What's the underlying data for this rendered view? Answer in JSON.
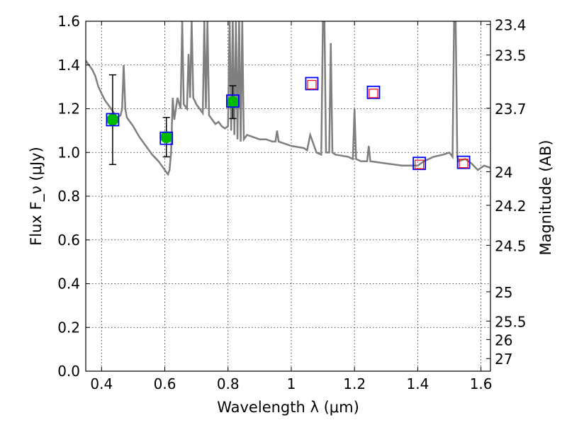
{
  "chart_data": {
    "type": "scatter",
    "xlabel": "Wavelength λ (μm)",
    "ylabel": "Flux F_ν (μJy)",
    "y2label": "Magnitude (AB)",
    "xlim": [
      0.35,
      1.63
    ],
    "ylim": [
      0.0,
      1.6
    ],
    "grid": true,
    "x_ticks": [
      0.4,
      0.6,
      0.8,
      1.0,
      1.2,
      1.4,
      1.6
    ],
    "x_tick_labels": [
      "0.4",
      "0.6",
      "0.8",
      "1",
      "1.2",
      "1.4",
      "1.6"
    ],
    "y_ticks": [
      0.0,
      0.2,
      0.4,
      0.6,
      0.8,
      1.0,
      1.2,
      1.4,
      1.6
    ],
    "y_tick_labels": [
      "0.0",
      "0.2",
      "0.4",
      "0.6",
      "0.8",
      "1.0",
      "1.2",
      "1.4",
      "1.6"
    ],
    "y2_ticks": [
      {
        "label": "23.4",
        "mag": 23.4
      },
      {
        "label": "23.5",
        "mag": 23.5
      },
      {
        "label": "23.7",
        "mag": 23.7
      },
      {
        "label": "24",
        "mag": 24.0
      },
      {
        "label": "24.2",
        "mag": 24.2
      },
      {
        "label": "24.5",
        "mag": 24.5
      },
      {
        "label": "25",
        "mag": 25.0
      },
      {
        "label": "25.5",
        "mag": 25.5
      },
      {
        "label": "26",
        "mag": 26.0
      },
      {
        "label": "27",
        "mag": 27.0
      }
    ],
    "series": [
      {
        "type": "line",
        "color": "#7f7f7f",
        "x": [
          0.35,
          0.36,
          0.37,
          0.38,
          0.39,
          0.4,
          0.41,
          0.42,
          0.43,
          0.44,
          0.45,
          0.46,
          0.465,
          0.47,
          0.475,
          0.48,
          0.5,
          0.52,
          0.54,
          0.56,
          0.58,
          0.59,
          0.6,
          0.61,
          0.615,
          0.62,
          0.625,
          0.63,
          0.64,
          0.65,
          0.655,
          0.66,
          0.67,
          0.675,
          0.68,
          0.685,
          0.69,
          0.7,
          0.71,
          0.72,
          0.725,
          0.73,
          0.735,
          0.74,
          0.75,
          0.76,
          0.77,
          0.78,
          0.79,
          0.8,
          0.805,
          0.81,
          0.815,
          0.82,
          0.825,
          0.83,
          0.835,
          0.84,
          0.845,
          0.85,
          0.86,
          0.88,
          0.9,
          0.92,
          0.94,
          0.95,
          0.955,
          0.96,
          0.98,
          1.0,
          1.04,
          1.05,
          1.06,
          1.08,
          1.095,
          1.1,
          1.105,
          1.11,
          1.12,
          1.125,
          1.13,
          1.14,
          1.18,
          1.195,
          1.2,
          1.205,
          1.22,
          1.24,
          1.245,
          1.25,
          1.3,
          1.35,
          1.4,
          1.42,
          1.45,
          1.48,
          1.5,
          1.51,
          1.515,
          1.52,
          1.525,
          1.53,
          1.55,
          1.57,
          1.59,
          1.61,
          1.63
        ],
        "y": [
          1.42,
          1.4,
          1.38,
          1.35,
          1.3,
          1.27,
          1.24,
          1.22,
          1.2,
          1.18,
          1.16,
          1.17,
          1.2,
          1.4,
          1.2,
          1.16,
          1.12,
          1.07,
          1.03,
          0.99,
          0.96,
          0.94,
          0.92,
          0.9,
          0.92,
          1.0,
          1.25,
          1.15,
          1.25,
          1.2,
          1.6,
          1.22,
          1.2,
          1.45,
          1.25,
          1.6,
          1.25,
          1.22,
          1.2,
          1.18,
          1.6,
          1.2,
          1.6,
          1.17,
          1.15,
          1.13,
          1.14,
          1.12,
          1.11,
          1.12,
          1.6,
          1.1,
          1.6,
          1.08,
          1.6,
          1.06,
          1.6,
          1.05,
          1.6,
          1.06,
          1.08,
          1.07,
          1.06,
          1.06,
          1.05,
          1.05,
          1.1,
          1.05,
          1.04,
          1.03,
          1.02,
          1.01,
          1.08,
          1.0,
          0.99,
          1.6,
          1.6,
          1.0,
          1.0,
          1.5,
          1.0,
          0.99,
          0.98,
          0.97,
          1.2,
          0.97,
          0.96,
          0.96,
          1.03,
          0.96,
          0.95,
          0.94,
          0.94,
          0.96,
          0.98,
          0.99,
          1.0,
          0.98,
          1.6,
          1.6,
          0.98,
          0.96,
          0.97,
          0.95,
          0.92,
          0.94,
          0.93
        ]
      },
      {
        "type": "errorbar-points",
        "marker": "green-circle",
        "color": "#00bb00",
        "x": [
          0.435,
          0.605,
          0.815
        ],
        "y": [
          1.15,
          1.07,
          1.23
        ],
        "yerr": [
          0.205,
          0.09,
          0.075
        ]
      },
      {
        "type": "points",
        "marker": "blue-square",
        "color": "#0000ff",
        "x": [
          0.435,
          0.605,
          0.815,
          1.065,
          1.26,
          1.405,
          1.545
        ],
        "y": [
          1.15,
          1.065,
          1.235,
          1.315,
          1.275,
          0.95,
          0.955
        ]
      },
      {
        "type": "points",
        "marker": "red-square",
        "color": "#ff0000",
        "x": [
          1.065,
          1.26,
          1.405,
          1.545
        ],
        "y": [
          1.31,
          1.27,
          0.945,
          0.95
        ]
      }
    ]
  }
}
